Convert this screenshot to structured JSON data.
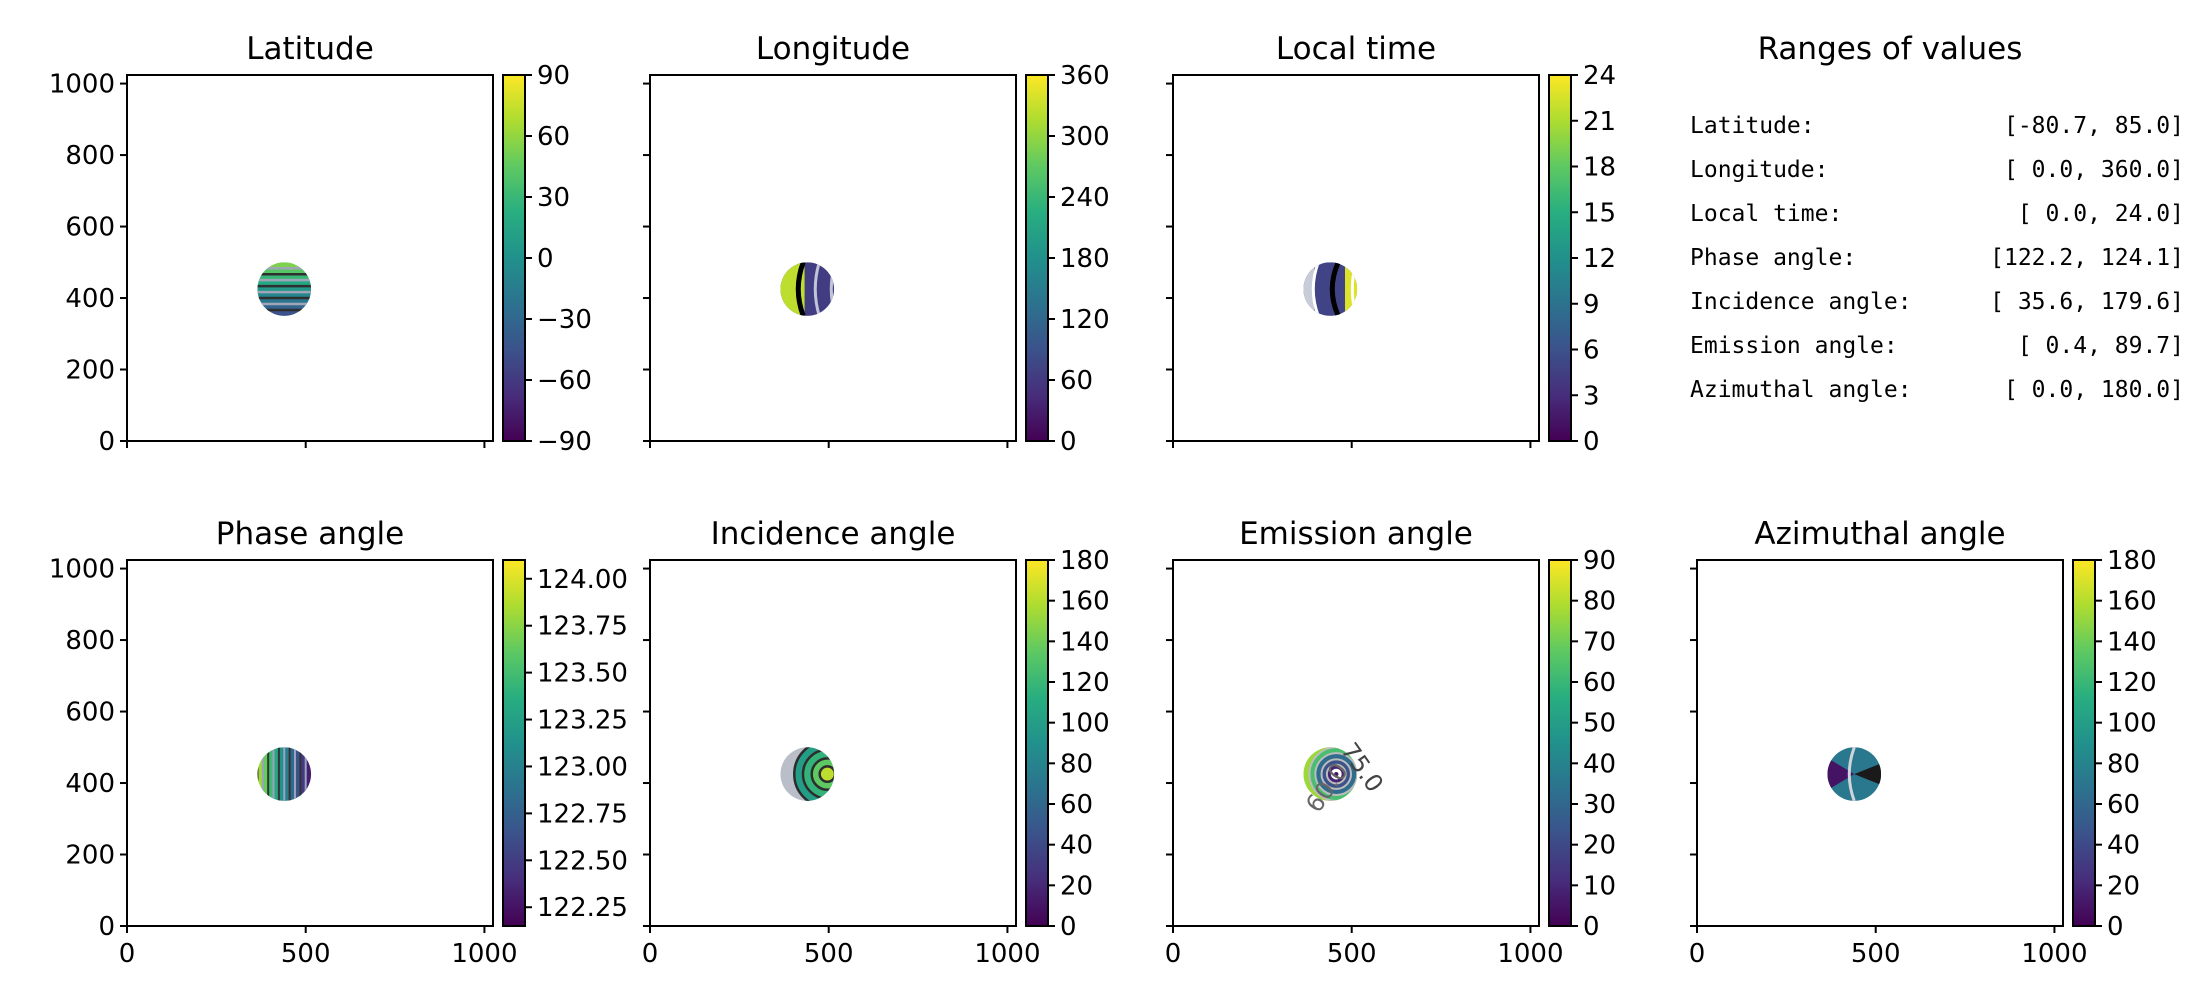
{
  "chart_data": [
    {
      "type": "heatmap",
      "title": "Latitude",
      "xlim": [
        0,
        1024
      ],
      "ylim": [
        0,
        1024
      ],
      "x_ticks": [],
      "y_ticks": [
        "0",
        "200",
        "400",
        "600",
        "800",
        "1000"
      ],
      "colorbar": {
        "range": [
          -90,
          90
        ],
        "ticks": [
          "90",
          "60",
          "30",
          "0",
          "−30",
          "−60",
          "−90"
        ]
      },
      "disk": {
        "center": [
          440,
          425
        ],
        "radius": 75
      }
    },
    {
      "type": "heatmap",
      "title": "Longitude",
      "xlim": [
        0,
        1024
      ],
      "ylim": [
        0,
        1024
      ],
      "x_ticks": [],
      "y_ticks": [],
      "colorbar": {
        "range": [
          0,
          360
        ],
        "ticks": [
          "360",
          "300",
          "240",
          "180",
          "120",
          "60",
          "0"
        ]
      },
      "disk": {
        "center": [
          440,
          425
        ],
        "radius": 75
      }
    },
    {
      "type": "heatmap",
      "title": "Local time",
      "xlim": [
        0,
        1024
      ],
      "ylim": [
        0,
        1024
      ],
      "x_ticks": [],
      "y_ticks": [],
      "colorbar": {
        "range": [
          0,
          24
        ],
        "ticks": [
          "24",
          "21",
          "18",
          "15",
          "12",
          "9",
          "6",
          "3",
          "0"
        ]
      },
      "disk": {
        "center": [
          440,
          425
        ],
        "radius": 75
      }
    },
    {
      "type": "table",
      "title": "Ranges of values",
      "rows": [
        [
          "Latitude:",
          "[-80.7,  85.0]"
        ],
        [
          "Longitude:",
          "[  0.0, 360.0]"
        ],
        [
          "Local time:",
          "[  0.0,  24.0]"
        ],
        [
          "Phase angle:",
          "[122.2, 124.1]"
        ],
        [
          "Incidence angle:",
          "[ 35.6, 179.6]"
        ],
        [
          "Emission angle:",
          "[  0.4,  89.7]"
        ],
        [
          "Azimuthal angle:",
          "[  0.0, 180.0]"
        ]
      ]
    },
    {
      "type": "heatmap",
      "title": "Phase angle",
      "xlim": [
        0,
        1024
      ],
      "ylim": [
        0,
        1024
      ],
      "x_ticks": [
        "0",
        "500",
        "1000"
      ],
      "y_ticks": [
        "0",
        "200",
        "400",
        "600",
        "800",
        "1000"
      ],
      "colorbar": {
        "range": [
          122.15,
          124.1
        ],
        "ticks": [
          "124.00",
          "123.75",
          "123.50",
          "123.25",
          "123.00",
          "122.75",
          "122.50",
          "122.25"
        ]
      },
      "disk": {
        "center": [
          440,
          425
        ],
        "radius": 75
      }
    },
    {
      "type": "heatmap",
      "title": "Incidence angle",
      "xlim": [
        0,
        1024
      ],
      "ylim": [
        0,
        1024
      ],
      "x_ticks": [
        "0",
        "500",
        "1000"
      ],
      "y_ticks": [],
      "colorbar": {
        "range": [
          0,
          180
        ],
        "ticks": [
          "180",
          "160",
          "140",
          "120",
          "100",
          "80",
          "60",
          "40",
          "20",
          "0"
        ]
      },
      "disk": {
        "center": [
          440,
          425
        ],
        "radius": 75
      }
    },
    {
      "type": "heatmap",
      "title": "Emission angle",
      "xlim": [
        0,
        1024
      ],
      "ylim": [
        0,
        1024
      ],
      "x_ticks": [
        "0",
        "500",
        "1000"
      ],
      "y_ticks": [],
      "colorbar": {
        "range": [
          0,
          90
        ],
        "ticks": [
          "90",
          "80",
          "70",
          "60",
          "50",
          "40",
          "30",
          "20",
          "10",
          "0"
        ]
      },
      "contour_labels": [
        "75.0",
        "60.0"
      ],
      "disk": {
        "center": [
          440,
          425
        ],
        "radius": 75
      }
    },
    {
      "type": "heatmap",
      "title": "Azimuthal angle",
      "xlim": [
        0,
        1024
      ],
      "ylim": [
        0,
        1024
      ],
      "x_ticks": [
        "0",
        "500",
        "1000"
      ],
      "y_ticks": [],
      "colorbar": {
        "range": [
          0,
          180
        ],
        "ticks": [
          "180",
          "160",
          "140",
          "120",
          "100",
          "80",
          "60",
          "40",
          "20",
          "0"
        ]
      },
      "disk": {
        "center": [
          440,
          425
        ],
        "radius": 75
      }
    }
  ]
}
